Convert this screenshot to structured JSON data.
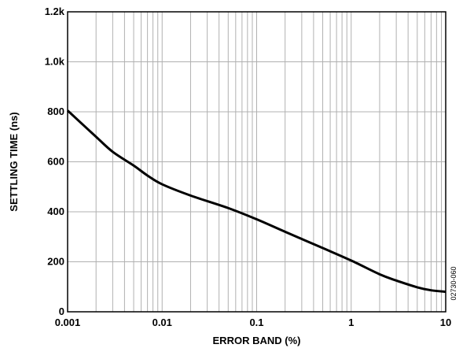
{
  "chart_data": {
    "type": "line",
    "title": "",
    "xlabel": "ERROR BAND (%)",
    "ylabel": "SETTLING TIME (ns)",
    "x_scale": "log",
    "xlim": [
      0.001,
      10
    ],
    "ylim": [
      0,
      1200
    ],
    "x_ticks": [
      0.001,
      0.01,
      0.1,
      1,
      10
    ],
    "x_tick_labels": [
      "0.001",
      "0.01",
      "0.1",
      "1",
      "10"
    ],
    "y_ticks": [
      0,
      200,
      400,
      600,
      800,
      1000,
      1200
    ],
    "y_tick_labels": [
      "0",
      "200",
      "400",
      "600",
      "800",
      "1.0k",
      "1.2k"
    ],
    "grid": "on (log minor vertical lines, major horizontal lines)",
    "series": [
      {
        "color": "#000000",
        "x": [
          0.001,
          0.002,
          0.003,
          0.005,
          0.007,
          0.01,
          0.02,
          0.05,
          0.1,
          0.2,
          0.5,
          1,
          2,
          3,
          5,
          7,
          10
        ],
        "y": [
          805,
          700,
          640,
          585,
          545,
          510,
          465,
          415,
          370,
          320,
          255,
          205,
          150,
          125,
          98,
          86,
          80
        ]
      }
    ]
  },
  "figure_code": "02730-060",
  "colors": {
    "grid": "#b0b0b0",
    "frame": "#000000",
    "line": "#000000"
  }
}
